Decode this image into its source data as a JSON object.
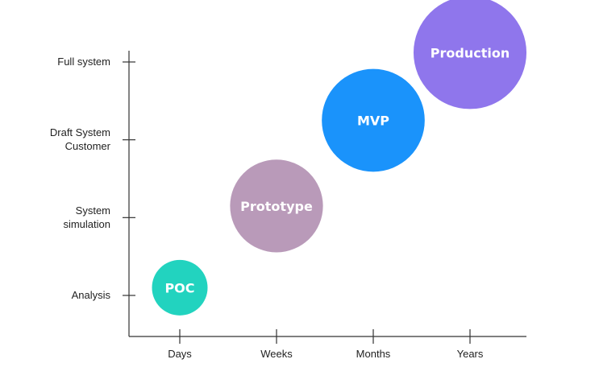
{
  "chart_data": {
    "type": "scatter",
    "title": "",
    "xlabel": "",
    "ylabel": "",
    "grid": false,
    "legend": false,
    "x_categories": [
      "Days",
      "Weeks",
      "Months",
      "Years"
    ],
    "y_categories": [
      [
        "Analysis"
      ],
      [
        "System",
        "simulation"
      ],
      [
        "Draft System",
        "Customer"
      ],
      [
        "Full system"
      ]
    ],
    "points": [
      {
        "label": "POC",
        "x": "Days",
        "y": 0.1,
        "size": 1.0,
        "color": "#22d3bf"
      },
      {
        "label": "Prototype",
        "x": "Weeks",
        "y": 1.15,
        "size": 1.67,
        "color": "#b99ab9"
      },
      {
        "label": "MVP",
        "x": "Months",
        "y": 2.25,
        "size": 1.85,
        "color": "#1a93fb"
      },
      {
        "label": "Production",
        "x": "Years",
        "y": 3.12,
        "size": 2.03,
        "color": "#8f76ec"
      }
    ]
  }
}
